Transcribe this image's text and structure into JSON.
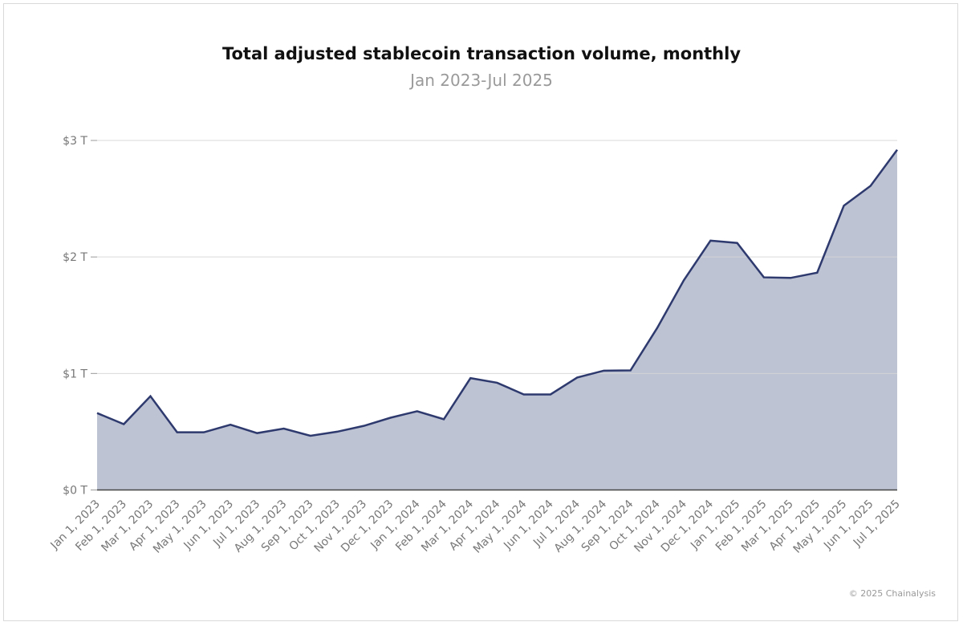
{
  "chart_data": {
    "type": "area",
    "title": "Total adjusted stablecoin transaction volume, monthly",
    "subtitle": "Jan 2023-Jul 2025",
    "xlabel": "",
    "ylabel": "",
    "ylim": [
      0,
      3
    ],
    "yticks": [
      {
        "v": 0,
        "label": "$0 T"
      },
      {
        "v": 1,
        "label": "$1 T"
      },
      {
        "v": 2,
        "label": "$2 T"
      },
      {
        "v": 3,
        "label": "$3 T"
      }
    ],
    "grid": true,
    "categories": [
      "Jan 1, 2023",
      "Feb 1, 2023",
      "Mar 1, 2023",
      "Apr 1, 2023",
      "May 1, 2023",
      "Jun 1, 2023",
      "Jul 1, 2023",
      "Aug 1, 2023",
      "Sep 1, 2023",
      "Oct 1, 2023",
      "Nov 1, 2023",
      "Dec 1, 2023",
      "Jan 1, 2024",
      "Feb 1, 2024",
      "Mar 1, 2024",
      "Apr 1, 2024",
      "May 1, 2024",
      "Jun 1, 2024",
      "Jul 1, 2024",
      "Aug 1, 2024",
      "Sep 1, 2024",
      "Oct 1, 2024",
      "Nov 1, 2024",
      "Dec 1, 2024",
      "Jan 1, 2025",
      "Feb 1, 2025",
      "Mar 1, 2025",
      "Apr 1, 2025",
      "May 1, 2025",
      "Jun 1, 2025",
      "Jul 1, 2025"
    ],
    "values": [
      0.66,
      0.565,
      0.805,
      0.495,
      0.495,
      0.56,
      0.488,
      0.527,
      0.465,
      0.5,
      0.55,
      0.62,
      0.676,
      0.607,
      0.96,
      0.92,
      0.82,
      0.82,
      0.965,
      1.024,
      1.026,
      1.39,
      1.8,
      2.14,
      2.12,
      1.825,
      1.82,
      1.865,
      2.44,
      2.61,
      2.92
    ],
    "unit": "trillion USD",
    "colors": {
      "line": "#2e3a6e",
      "fill": "#bec3d4",
      "grid": "#d6d6d6"
    }
  },
  "footer": {
    "credit": "© 2025 Chainalysis"
  }
}
